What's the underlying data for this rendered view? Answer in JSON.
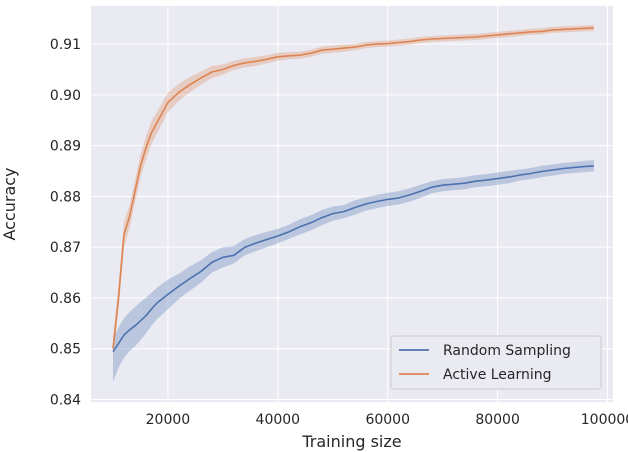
{
  "chart_data": {
    "type": "line",
    "title": "",
    "xlabel": "Training size",
    "ylabel": "Accuracy",
    "xlim": [
      6000,
      101000
    ],
    "ylim": [
      0.8395,
      0.9175
    ],
    "xticks": [
      20000,
      40000,
      60000,
      80000,
      100000
    ],
    "xtick_labels": [
      "20000",
      "40000",
      "60000",
      "80000",
      "100000"
    ],
    "yticks": [
      0.84,
      0.85,
      0.86,
      0.87,
      0.88,
      0.89,
      0.9,
      0.91
    ],
    "ytick_labels": [
      "0.84",
      "0.85",
      "0.86",
      "0.87",
      "0.88",
      "0.89",
      "0.90",
      "0.91"
    ],
    "grid": true,
    "background": "#eaeaf2",
    "legend_position": "bottom-right",
    "series": [
      {
        "name": "Random Sampling",
        "color": "#4c72b0",
        "x": [
          10000,
          11000,
          12000,
          13000,
          14000,
          15000,
          16000,
          17000,
          18000,
          20000,
          22000,
          24000,
          26000,
          28000,
          30000,
          32000,
          34000,
          36000,
          38000,
          40000,
          42000,
          44000,
          46000,
          48000,
          50000,
          52000,
          54000,
          56000,
          58000,
          60000,
          62000,
          64000,
          66000,
          68000,
          70000,
          72000,
          74000,
          76000,
          78000,
          80000,
          82000,
          84000,
          86000,
          88000,
          90000,
          92000,
          94000,
          96000,
          97500
        ],
        "y": [
          0.8494,
          0.851,
          0.8527,
          0.8537,
          0.8545,
          0.8555,
          0.8565,
          0.8578,
          0.859,
          0.8607,
          0.8623,
          0.8638,
          0.8652,
          0.867,
          0.868,
          0.8684,
          0.87,
          0.8708,
          0.8715,
          0.8722,
          0.873,
          0.874,
          0.8748,
          0.8758,
          0.8766,
          0.877,
          0.8778,
          0.8785,
          0.879,
          0.8794,
          0.8797,
          0.8803,
          0.881,
          0.8818,
          0.8822,
          0.8824,
          0.8826,
          0.883,
          0.8832,
          0.8835,
          0.8838,
          0.8842,
          0.8845,
          0.8849,
          0.8852,
          0.8855,
          0.8857,
          0.8859,
          0.886
        ],
        "lower": [
          0.8435,
          0.8462,
          0.8482,
          0.8495,
          0.8505,
          0.8517,
          0.853,
          0.8545,
          0.8558,
          0.8578,
          0.8598,
          0.8614,
          0.863,
          0.865,
          0.866,
          0.8668,
          0.8684,
          0.8692,
          0.87,
          0.8708,
          0.8716,
          0.8725,
          0.8733,
          0.8743,
          0.8752,
          0.8757,
          0.8764,
          0.8772,
          0.8777,
          0.8781,
          0.8784,
          0.879,
          0.8797,
          0.8806,
          0.881,
          0.8812,
          0.8814,
          0.8818,
          0.882,
          0.8823,
          0.8826,
          0.8831,
          0.8834,
          0.8838,
          0.8841,
          0.8844,
          0.8846,
          0.8848,
          0.8849
        ],
        "upper": [
          0.852,
          0.8542,
          0.856,
          0.8572,
          0.8582,
          0.8592,
          0.86,
          0.861,
          0.862,
          0.8636,
          0.8648,
          0.8662,
          0.8674,
          0.869,
          0.87,
          0.8702,
          0.8716,
          0.8724,
          0.873,
          0.8736,
          0.8744,
          0.8755,
          0.8763,
          0.8773,
          0.878,
          0.8783,
          0.8792,
          0.8798,
          0.8803,
          0.8807,
          0.881,
          0.8816,
          0.8823,
          0.883,
          0.8834,
          0.8836,
          0.8838,
          0.8842,
          0.8844,
          0.8847,
          0.885,
          0.8853,
          0.8856,
          0.886,
          0.8863,
          0.8866,
          0.8868,
          0.887,
          0.8871
        ]
      },
      {
        "name": "Active Learning",
        "color": "#dd8452",
        "x": [
          10000,
          11000,
          12000,
          13000,
          14000,
          15000,
          16000,
          17000,
          18000,
          19000,
          20000,
          22000,
          24000,
          26000,
          28000,
          30000,
          32000,
          34000,
          36000,
          38000,
          40000,
          42000,
          44000,
          46000,
          48000,
          50000,
          52000,
          54000,
          56000,
          58000,
          60000,
          62000,
          64000,
          66000,
          68000,
          70000,
          72000,
          74000,
          76000,
          78000,
          80000,
          82000,
          84000,
          86000,
          88000,
          90000,
          92000,
          94000,
          96000,
          97500
        ],
        "y": [
          0.85,
          0.86,
          0.8725,
          0.876,
          0.881,
          0.886,
          0.8895,
          0.8925,
          0.8945,
          0.8965,
          0.8985,
          0.9005,
          0.902,
          0.9033,
          0.9045,
          0.905,
          0.9058,
          0.9063,
          0.9066,
          0.907,
          0.9075,
          0.9077,
          0.9078,
          0.9082,
          0.9088,
          0.909,
          0.9092,
          0.9094,
          0.9098,
          0.91,
          0.9101,
          0.9103,
          0.9105,
          0.9108,
          0.911,
          0.9111,
          0.9112,
          0.9113,
          0.9114,
          0.9116,
          0.9118,
          0.912,
          0.9122,
          0.9124,
          0.9125,
          0.9128,
          0.9129,
          0.913,
          0.9131,
          0.9132
        ],
        "lower": [
          0.848,
          0.8575,
          0.87,
          0.8738,
          0.8788,
          0.8838,
          0.8872,
          0.8902,
          0.8924,
          0.8945,
          0.8966,
          0.8988,
          0.9005,
          0.902,
          0.9033,
          0.904,
          0.9049,
          0.9054,
          0.9057,
          0.9062,
          0.9067,
          0.907,
          0.9071,
          0.9075,
          0.9081,
          0.9083,
          0.9085,
          0.9088,
          0.9092,
          0.9094,
          0.9095,
          0.9097,
          0.9099,
          0.9102,
          0.9104,
          0.9105,
          0.9106,
          0.9107,
          0.9108,
          0.911,
          0.9112,
          0.9114,
          0.9116,
          0.9118,
          0.9119,
          0.9122,
          0.9123,
          0.9124,
          0.9125,
          0.9126
        ],
        "upper": [
          0.852,
          0.8625,
          0.875,
          0.8782,
          0.8832,
          0.8882,
          0.8918,
          0.8948,
          0.8966,
          0.8985,
          0.9004,
          0.9022,
          0.9035,
          0.9046,
          0.9057,
          0.906,
          0.9067,
          0.9072,
          0.9075,
          0.9078,
          0.9083,
          0.9084,
          0.9085,
          0.9089,
          0.9095,
          0.9097,
          0.9099,
          0.91,
          0.9104,
          0.9106,
          0.9107,
          0.9109,
          0.9111,
          0.9114,
          0.9116,
          0.9117,
          0.9118,
          0.9119,
          0.912,
          0.9122,
          0.9124,
          0.9126,
          0.9128,
          0.913,
          0.9131,
          0.9134,
          0.9135,
          0.9136,
          0.9137,
          0.9138
        ]
      }
    ]
  }
}
